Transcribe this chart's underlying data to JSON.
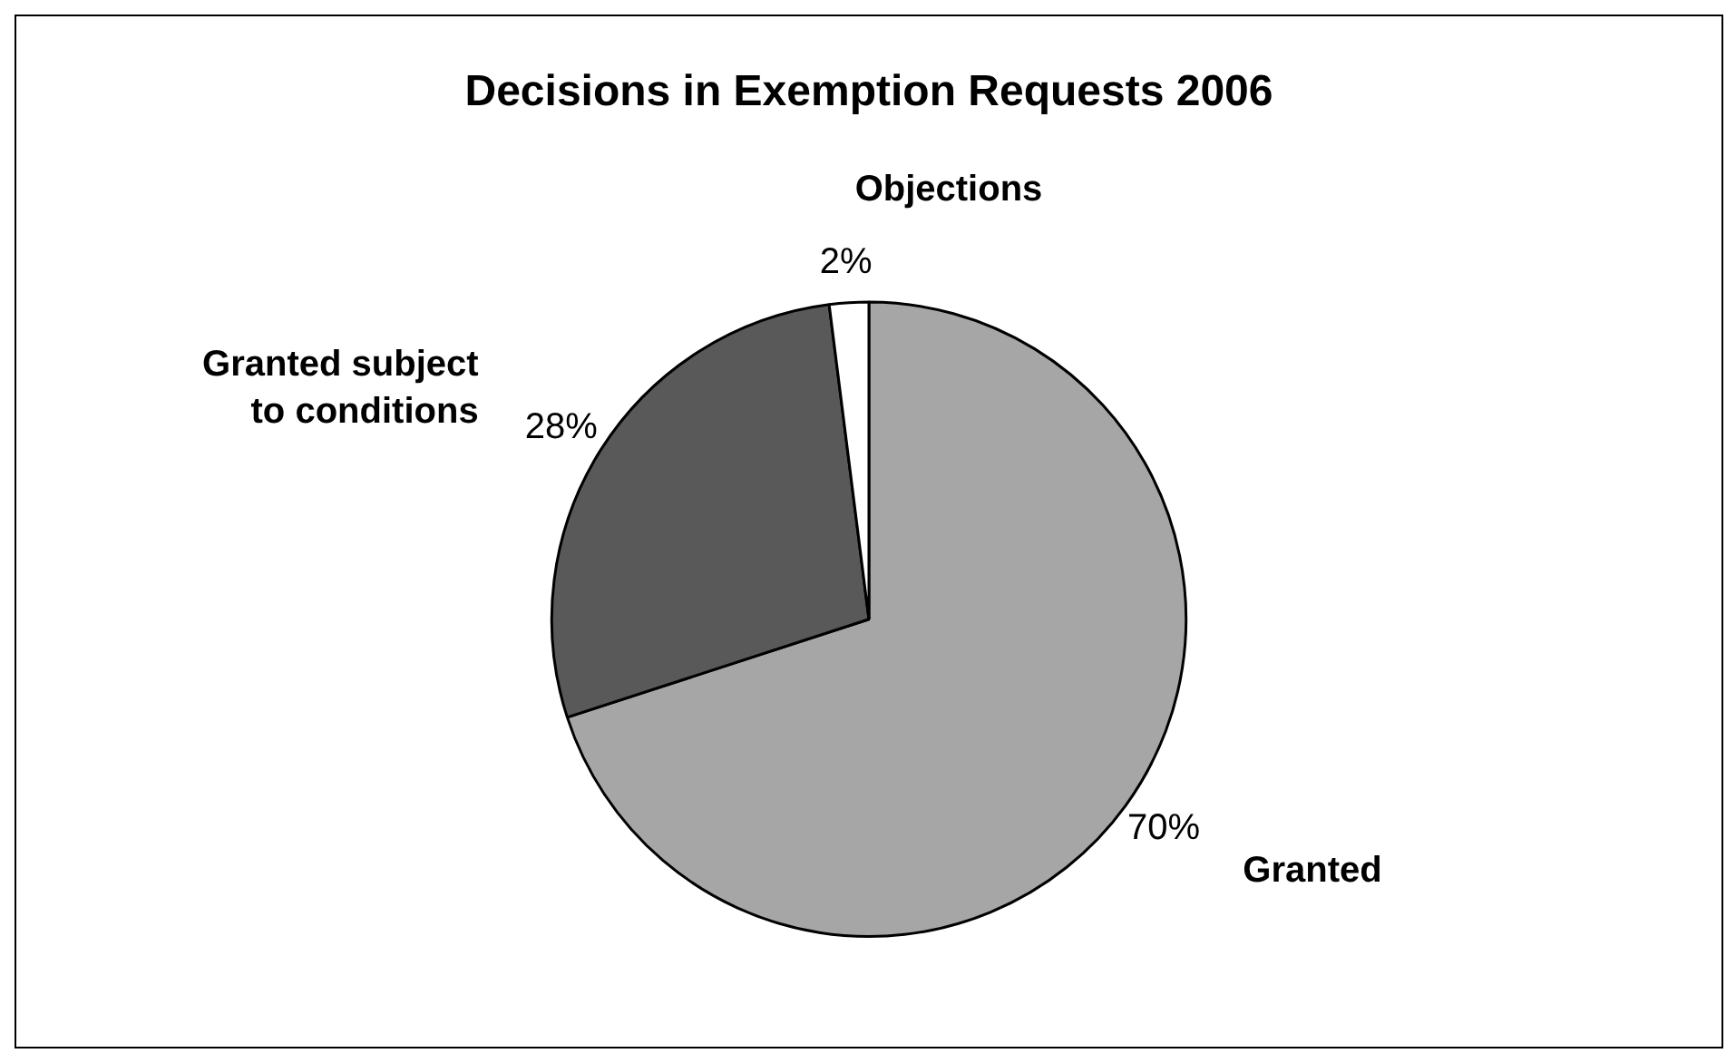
{
  "chart_data": {
    "type": "pie",
    "title": "Decisions in Exemption Requests 2006",
    "categories": [
      "Granted",
      "Granted subject to conditions",
      "Objections"
    ],
    "values": [
      70,
      28,
      2
    ],
    "colors": [
      "#a6a6a6",
      "#595959",
      "#ffffff"
    ],
    "value_labels": [
      "70%",
      "28%",
      "2%"
    ],
    "legend": false
  }
}
